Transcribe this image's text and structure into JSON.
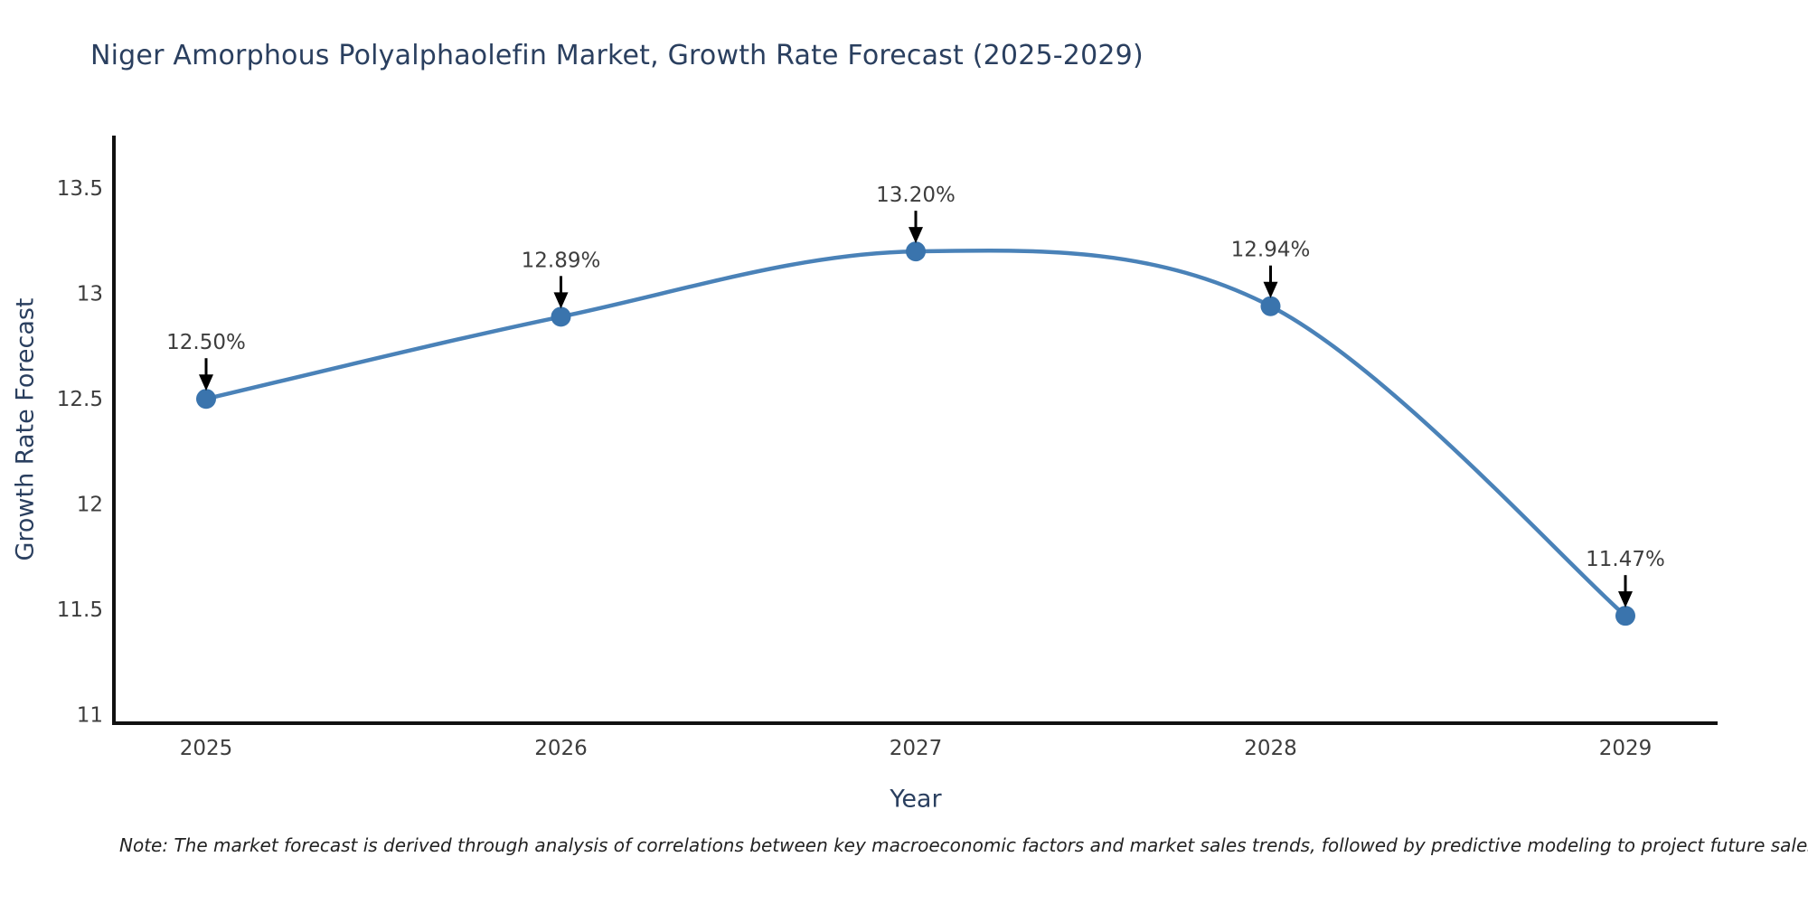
{
  "chart_data": {
    "type": "line",
    "title": "Niger Amorphous Polyalphaolefin Market, Growth Rate Forecast (2025-2029)",
    "xlabel": "Year",
    "ylabel": "Growth Rate Forecast",
    "categories": [
      2025,
      2026,
      2027,
      2028,
      2029
    ],
    "values": [
      12.5,
      12.89,
      13.2,
      12.94,
      11.47
    ],
    "point_labels": [
      "12.50%",
      "12.89%",
      "13.20%",
      "12.94%",
      "11.47%"
    ],
    "yticks": [
      11,
      11.5,
      12,
      12.5,
      13,
      13.5
    ],
    "ytick_labels": [
      "11",
      "11.5",
      "12",
      "12.5",
      "13",
      "13.5"
    ],
    "ylim": [
      10.96,
      13.75
    ],
    "grid": false,
    "legend": "none",
    "line_shape": "spline",
    "colors": {
      "line": "#4a82b8",
      "marker": "#3a74ad",
      "axis": "#111111",
      "title_text": "#2a3f5f",
      "tick_text": "#3d3d3d",
      "annotation_text": "#3d3d3d",
      "annotation_arrow": "#000000"
    },
    "note": "Note: The market forecast is derived through analysis of correlations between key macroeconomic factors and market sales trends, followed by predictive modeling to project future sales."
  }
}
